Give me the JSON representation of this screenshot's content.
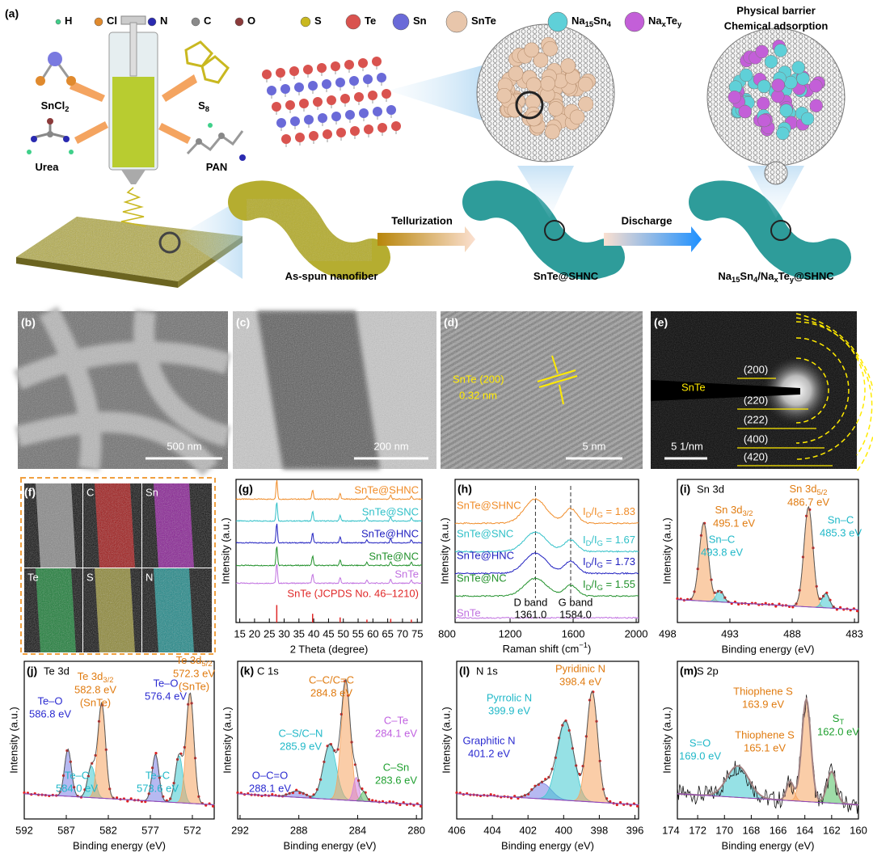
{
  "figure": {
    "a": {
      "tag": "(a)",
      "legend": [
        [
          "H"
        ],
        [
          "Cl"
        ],
        [
          "N"
        ],
        [
          "C"
        ],
        [
          "O"
        ],
        [
          "S"
        ],
        [
          "Te"
        ],
        [
          "Sn"
        ],
        [
          "SnTe"
        ],
        [
          "Na",
          "15",
          "Sn",
          "4"
        ],
        [
          "Na",
          "x",
          "Te",
          "y"
        ]
      ],
      "legend_colors": [
        "#3fd08a",
        "#e08a2e",
        "#2a2ab0",
        "#8a8a8a",
        "#8b3a3a",
        "#c9b820",
        "#d9534f",
        "#6a6ad8",
        "#e8c6ab",
        "#5fd0d8",
        "#c35fd8"
      ],
      "barrier": [
        "Physical barrier",
        "Chemical adsorption"
      ],
      "precursors": [
        [
          "SnCl",
          "2"
        ],
        [
          "S",
          "8"
        ],
        [
          "Urea"
        ],
        [
          "PAN"
        ]
      ],
      "stages": [
        [
          "As-spun nanofiber"
        ],
        [
          "SnTe@SHNC"
        ],
        [
          "Na",
          "15",
          "Sn",
          "4",
          "/Na",
          "x",
          "Te",
          "y",
          "@SHNC"
        ]
      ],
      "steps": [
        "Tellurization",
        "Discharge"
      ]
    },
    "b": {
      "tag": "(b)",
      "scale": "500 nm"
    },
    "c": {
      "tag": "(c)",
      "scale": "200 nm"
    },
    "d": {
      "tag": "(d)",
      "label": "SnTe (200)",
      "spacing": "0.32 nm",
      "scale": "5 nm"
    },
    "e": {
      "tag": "(e)",
      "label": "SnTe",
      "rings": [
        "(200)",
        "(220)",
        "(222)",
        "(400)",
        "(420)"
      ],
      "scale": "5 1/nm"
    },
    "f": {
      "tag": "(f)",
      "maps": [
        "C",
        "Sn",
        "Te",
        "S",
        "N"
      ],
      "map_colors": [
        "#d01818",
        "#b020c0",
        "#1aa040",
        "#b8b040",
        "#20b0b0"
      ]
    },
    "g": {
      "tag": "(g)",
      "traces": [
        {
          "name": "SnTe@SHNC",
          "color": "#f08c28"
        },
        {
          "name": "SnTe@SNC",
          "color": "#30c0c8"
        },
        {
          "name": "SnTe@HNC",
          "color": "#2020c0"
        },
        {
          "name": "SnTe@NC",
          "color": "#20902a"
        },
        {
          "name": "SnTe",
          "color": "#c070e0"
        }
      ],
      "reference": {
        "name": "SnTe (JCPDS No. 46–1210)",
        "color": "#e02828"
      },
      "xticks": [
        "15",
        "20",
        "25",
        "30",
        "35",
        "40",
        "45",
        "50",
        "55",
        "60",
        "65",
        "70",
        "75"
      ],
      "xlabel": "2 Theta (degree)",
      "ylabel": "Intensity (a.u.)"
    },
    "h": {
      "tag": "(h)",
      "traces": [
        {
          "name": "SnTe@SHNC",
          "color": "#f08c28",
          "ratio": [
            "I",
            "D",
            "/I",
            "G",
            " = 1.83"
          ]
        },
        {
          "name": "SnTe@SNC",
          "color": "#30c0c8",
          "ratio": [
            "I",
            "D",
            "/I",
            "G",
            " = 1.67"
          ]
        },
        {
          "name": "SnTe@HNC",
          "color": "#2020c0",
          "ratio": [
            "I",
            "D",
            "/I",
            "G",
            " = 1.73"
          ]
        },
        {
          "name": "SnTe@NC",
          "color": "#20902a",
          "ratio": [
            "I",
            "D",
            "/I",
            "G",
            " = 1.55"
          ]
        },
        {
          "name": "SnTe",
          "color": "#c070e0"
        }
      ],
      "bands": [
        [
          "D band",
          "1361.0"
        ],
        [
          "G band",
          "1584.0"
        ]
      ],
      "xticks": [
        "800",
        "1200",
        "1600",
        "2000"
      ],
      "xlabel": [
        "Raman shift (cm",
        "−1",
        ")"
      ],
      "ylabel": "Intensity (a.u.)"
    },
    "i": {
      "tag": "(i)",
      "title": "Sn 3d",
      "annotations": [
        {
          "lines": [
            [
              "Sn 3d",
              "3/2"
            ],
            "495.1 eV"
          ],
          "color": "#e07b10"
        },
        {
          "lines": [
            [
              "Sn 3d",
              "5/2"
            ],
            "486.7 eV"
          ],
          "color": "#e07b10"
        },
        {
          "lines": [
            "Sn–C",
            "493.8 eV"
          ],
          "color": "#20b8c8"
        },
        {
          "lines": [
            "Sn–C",
            "485.3 eV"
          ],
          "color": "#20b8c8"
        }
      ],
      "xticks": [
        "498",
        "493",
        "488",
        "483"
      ],
      "xlabel": "Binding energy (eV)",
      "ylabel": "Intensity (a.u.)"
    },
    "j": {
      "tag": "(j)",
      "title": "Te 3d",
      "annotations": [
        {
          "lines": [
            "Te–O",
            "586.8 eV"
          ],
          "color": "#2a2ad0"
        },
        {
          "lines": [
            [
              "Te 3d",
              "3/2"
            ],
            "582.8 eV",
            "(SnTe)"
          ],
          "color": "#e07b10"
        },
        {
          "lines": [
            "Te–O",
            "576.4 eV"
          ],
          "color": "#2a2ad0"
        },
        {
          "lines": [
            [
              "Te 3d",
              "5/2"
            ],
            "572.3 eV",
            "(SnTe)"
          ],
          "color": "#e07b10"
        },
        {
          "lines": [
            "Te–C",
            "584.0 eV"
          ],
          "color": "#20b8c8"
        },
        {
          "lines": [
            "Te–C",
            "573.6 eV"
          ],
          "color": "#20b8c8"
        }
      ],
      "xticks": [
        "592",
        "587",
        "582",
        "577",
        "572"
      ],
      "xlabel": "Binding energy (eV)",
      "ylabel": "Intensity (a.u.)"
    },
    "k": {
      "tag": "(k)",
      "title": "C 1s",
      "annotations": [
        {
          "lines": [
            "C–C/C=C",
            "284.8 eV"
          ],
          "color": "#e07b10"
        },
        {
          "lines": [
            "C–Te",
            "284.1 eV"
          ],
          "color": "#c060e0"
        },
        {
          "lines": [
            "C–S/C–N",
            "285.9 eV"
          ],
          "color": "#20b8c8"
        },
        {
          "lines": [
            "O–C=O",
            "288.1 eV"
          ],
          "color": "#2a2ad0"
        },
        {
          "lines": [
            "C–Sn",
            "283.6 eV"
          ],
          "color": "#20a030"
        }
      ],
      "xticks": [
        "292",
        "288",
        "284",
        "280"
      ],
      "xlabel": "Binding energy (eV)",
      "ylabel": "Intensity (a.u.)"
    },
    "l": {
      "tag": "(l)",
      "title": "N 1s",
      "annotations": [
        {
          "lines": [
            "Pyridinic N",
            "398.4 eV"
          ],
          "color": "#e07b10"
        },
        {
          "lines": [
            "Pyrrolic N",
            "399.9 eV"
          ],
          "color": "#20b8c8"
        },
        {
          "lines": [
            "Graphitic N",
            "401.2 eV"
          ],
          "color": "#2a2ad0"
        }
      ],
      "xticks": [
        "406",
        "404",
        "402",
        "400",
        "398",
        "396"
      ],
      "xlabel": "Binding energy (eV)",
      "ylabel": "Intensity (a.u.)"
    },
    "m": {
      "tag": "(m)",
      "title": "S 2p",
      "annotations": [
        {
          "lines": [
            "Thiophene S",
            "163.9 eV"
          ],
          "color": "#e07b10"
        },
        {
          "lines": [
            "Thiophene S",
            "165.1 eV"
          ],
          "color": "#e07b10"
        },
        {
          "lines": [
            [
              "S",
              "T"
            ],
            "162.0 eV"
          ],
          "color": "#20a030"
        },
        {
          "lines": [
            "S=O",
            "169.0 eV"
          ],
          "color": "#20b8c8"
        }
      ],
      "xticks": [
        "174",
        "172",
        "170",
        "168",
        "166",
        "164",
        "162",
        "160"
      ],
      "xlabel": "Binding energy (eV)",
      "ylabel": "Intensity (a.u.)"
    }
  }
}
